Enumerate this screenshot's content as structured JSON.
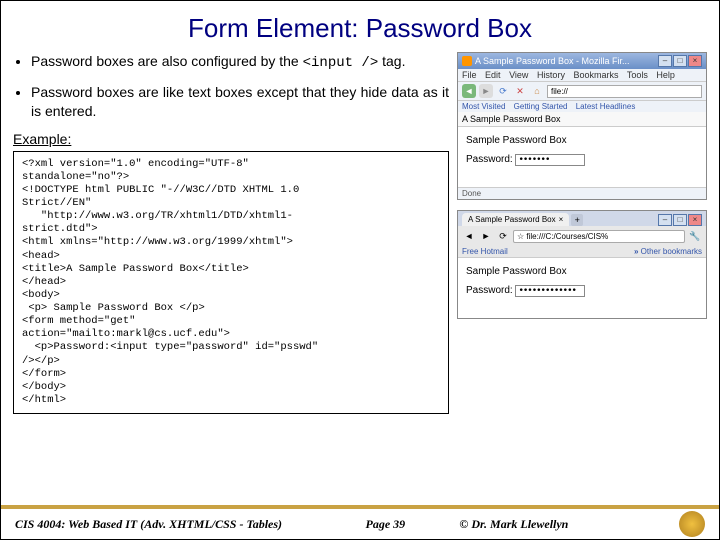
{
  "title": "Form Element: Password Box",
  "bullets": {
    "b1_pre": "Password boxes are also configured by the ",
    "b1_code": "<input  />",
    "b1_post": " tag.",
    "b2": "Password boxes are like text boxes except that they hide data as it is entered."
  },
  "example_label": "Example:",
  "code": "<?xml version=\"1.0\" encoding=\"UTF-8\"\nstandalone=\"no\"?>\n<!DOCTYPE html PUBLIC \"-//W3C//DTD XHTML 1.0\nStrict//EN\"\n   \"http://www.w3.org/TR/xhtml1/DTD/xhtml1-\nstrict.dtd\">\n<html xmlns=\"http://www.w3.org/1999/xhtml\">\n<head>\n<title>A Sample Password Box</title>\n</head>\n<body>\n <p> Sample Password Box </p>\n<form method=\"get\"\naction=\"mailto:markl@cs.ucf.edu\">\n  <p>Password:<input type=\"password\" id=\"psswd\"\n/></p>\n</form>\n</body>\n</html>",
  "firefox": {
    "title": "A Sample Password Box - Mozilla Fir...",
    "menu": {
      "file": "File",
      "edit": "Edit",
      "view": "View",
      "history": "History",
      "bookmarks": "Bookmarks",
      "tools": "Tools",
      "help": "Help"
    },
    "url": "file://",
    "bookmarks": {
      "most": "Most Visited",
      "getting": "Getting Started",
      "latest": "Latest Headlines"
    },
    "tab": "A Sample Password Box",
    "page_heading": "Sample Password Box",
    "pw_label": "Password:",
    "pw_value": "•••••••",
    "status": "Done"
  },
  "chrome": {
    "tab": "A Sample Password Box",
    "url": "file:///C:/Courses/CIS%",
    "bookmarks": {
      "free": "Free Hotmail",
      "other": "Other bookmarks"
    },
    "page_heading": "Sample Password Box",
    "pw_label": "Password:",
    "pw_value": "•••••••••••••"
  },
  "footer": {
    "course": "CIS 4004: Web Based IT (Adv. XHTML/CSS - Tables)",
    "page": "Page 39",
    "author": "© Dr. Mark Llewellyn"
  },
  "colors": {
    "title_color": "#000080",
    "footer_rule": "#c9a243"
  }
}
